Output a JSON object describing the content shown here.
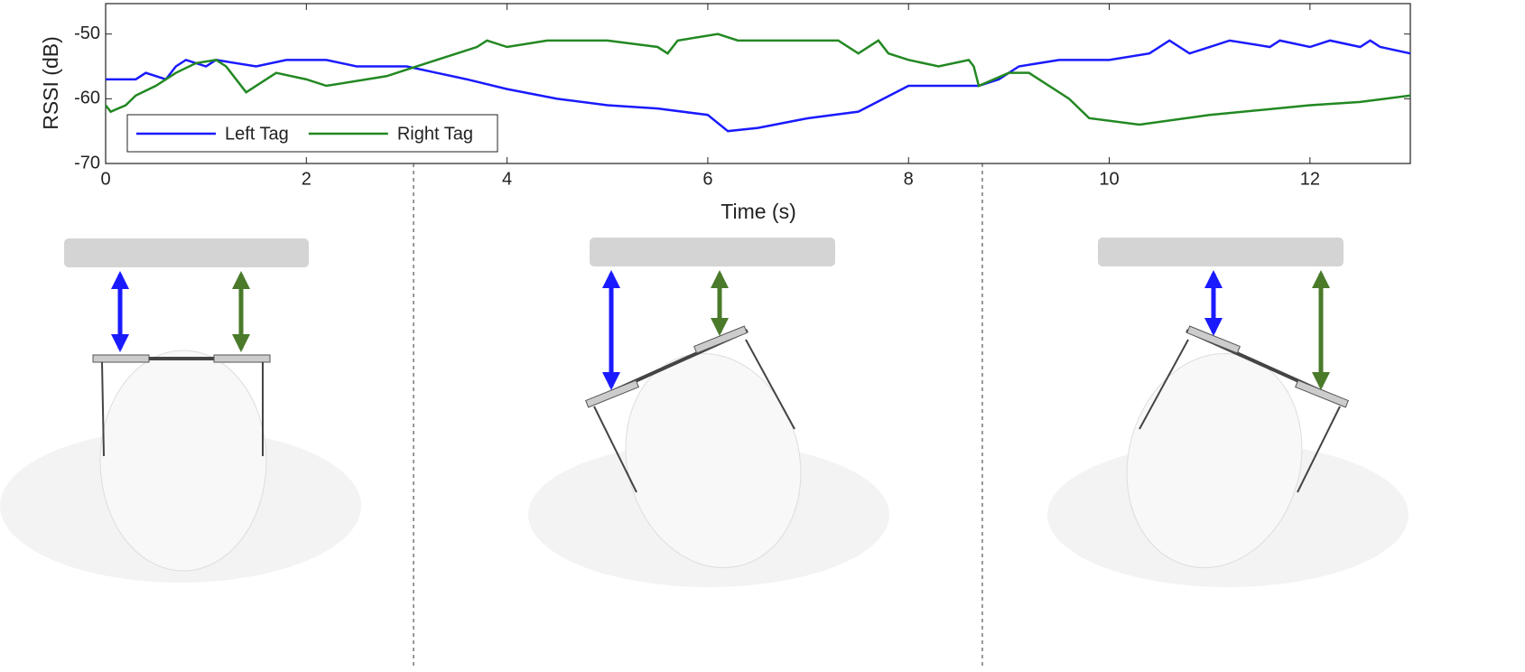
{
  "chart_data": {
    "type": "line",
    "x_label": "Time (s)",
    "y_label": "RSSI (dB)",
    "xlim": [
      0,
      13
    ],
    "ylim": [
      -70,
      -45.3
    ],
    "xticks": [
      0,
      2,
      4,
      6,
      8,
      10,
      12
    ],
    "yticks": [
      -70,
      -60,
      -50
    ],
    "legend": "lower left",
    "series": [
      {
        "name": "Left Tag",
        "color": "#1a1aff",
        "x": [
          0,
          0.3,
          0.4,
          0.6,
          0.7,
          0.8,
          1.0,
          1.1,
          1.5,
          1.8,
          2.2,
          2.5,
          3.0,
          3.3,
          3.6,
          4.0,
          4.5,
          5.0,
          5.5,
          6.0,
          6.2,
          6.5,
          7.0,
          7.5,
          8.0,
          8.7,
          8.9,
          9.1,
          9.5,
          10.0,
          10.4,
          10.6,
          10.8,
          11.0,
          11.2,
          11.6,
          11.7,
          12.0,
          12.2,
          12.5,
          12.6,
          12.7,
          13.0
        ],
        "values": [
          -57,
          -57,
          -56,
          -57,
          -55,
          -54,
          -55,
          -54,
          -55,
          -54,
          -54,
          -55,
          -55,
          -56,
          -57,
          -58.5,
          -60,
          -61,
          -61.5,
          -62.5,
          -65,
          -64.5,
          -63,
          -62,
          -58,
          -58,
          -57,
          -55,
          -54,
          -54,
          -53,
          -51,
          -53,
          -52,
          -51,
          -52,
          -51,
          -52,
          -51,
          -52,
          -51,
          -52,
          -53
        ]
      },
      {
        "name": "Right Tag",
        "color": "#228822",
        "x": [
          0,
          0.05,
          0.2,
          0.3,
          0.5,
          0.7,
          0.9,
          1.1,
          1.2,
          1.4,
          1.6,
          1.7,
          2.0,
          2.2,
          2.6,
          2.8,
          3.0,
          3.3,
          3.5,
          3.7,
          3.8,
          4.0,
          4.4,
          5.0,
          5.5,
          5.6,
          5.7,
          6.1,
          6.3,
          7.3,
          7.5,
          7.7,
          7.8,
          8.0,
          8.3,
          8.6,
          8.65,
          8.7,
          9.0,
          9.2,
          9.6,
          9.8,
          10.3,
          11.0,
          12.0,
          12.5,
          13.0
        ],
        "values": [
          -61,
          -62,
          -61,
          -59.5,
          -58,
          -56,
          -54.5,
          -54,
          -55,
          -59,
          -57,
          -56,
          -57,
          -58,
          -57,
          -56.5,
          -55.5,
          -54,
          -53,
          -52,
          -51,
          -52,
          -51,
          -51,
          -52,
          -53,
          -51,
          -50,
          -51,
          -51,
          -53,
          -51,
          -53,
          -54,
          -55,
          -54,
          -55,
          -58,
          -56,
          -56,
          -60,
          -63,
          -64,
          -62.5,
          -61,
          -60.5,
          -59.5
        ]
      }
    ]
  }
}
